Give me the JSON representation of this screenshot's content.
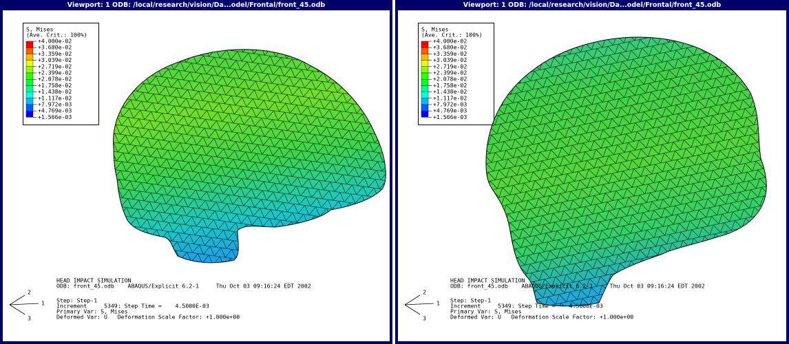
{
  "viewports": [
    {
      "title": "Viewport: 1     ODB: /local/research/vision/Da...odel/Frontal/front_45.odb",
      "legend": {
        "title": "S, Mises",
        "subtitle": "(Ave. Crit.: 100%)",
        "labels": [
          "+4.000e-02",
          "+3.680e-02",
          "+3.359e-02",
          "+3.039e-02",
          "+2.719e-02",
          "+2.399e-02",
          "+2.078e-02",
          "+1.758e-02",
          "+1.438e-02",
          "+1.117e-02",
          "+7.972e-03",
          "+4.769e-03",
          "+1.566e-03"
        ],
        "colors": [
          "#ff0000",
          "#ff5c00",
          "#ffb900",
          "#e5ff00",
          "#8aff00",
          "#2eff00",
          "#00ff2e",
          "#00ff8b",
          "#00ffe7",
          "#00b9ff",
          "#005dff",
          "#0000ff"
        ]
      },
      "info": [
        "HEAD IMPACT SIMULATION",
        "ODB: front_45.odb    ABAQUS/Explicit 6.2-1     Thu Oct 03 09:16:24 EDT 2002",
        "",
        "Step: Step-1",
        "Increment     5349: Step Time =    4.5000E-03",
        "Primary Var: S, Mises",
        "Deformed Var: U   Deformation Scale Factor: +1.000e+00"
      ],
      "triad": [
        "2",
        "1",
        "3"
      ]
    },
    {
      "title": "Viewport: 1     ODB: /local/research/vision/Da...odel/Frontal/front_45.odb",
      "legend": {
        "title": "S, Mises",
        "subtitle": "(Ave. Crit.: 100%)",
        "labels": [
          "+4.000e-02",
          "+3.680e-02",
          "+3.359e-02",
          "+3.039e-02",
          "+2.719e-02",
          "+2.399e-02",
          "+2.078e-02",
          "+1.758e-02",
          "+1.438e-02",
          "+1.117e-02",
          "+7.972e-03",
          "+4.769e-03",
          "+1.566e-03"
        ],
        "colors": [
          "#ff0000",
          "#ff5c00",
          "#ffb900",
          "#e5ff00",
          "#8aff00",
          "#2eff00",
          "#00ff2e",
          "#00ff8b",
          "#00ffe7",
          "#00b9ff",
          "#005dff",
          "#0000ff"
        ]
      },
      "info": [
        "HEAD IMPACT SIMULATION",
        "ODB: front_45.odb    ABAQUS/Explicit 6.2-1     Thu Oct 03 09:16:24 EDT 2002",
        "",
        "Step: Step-1",
        "Increment     5349: Step Time =    4.5000E-03",
        "Primary Var: S, Mises",
        "Deformed Var: U   Deformation Scale Factor: +1.000e+00"
      ],
      "triad": [
        "2",
        "1",
        "3"
      ]
    }
  ]
}
